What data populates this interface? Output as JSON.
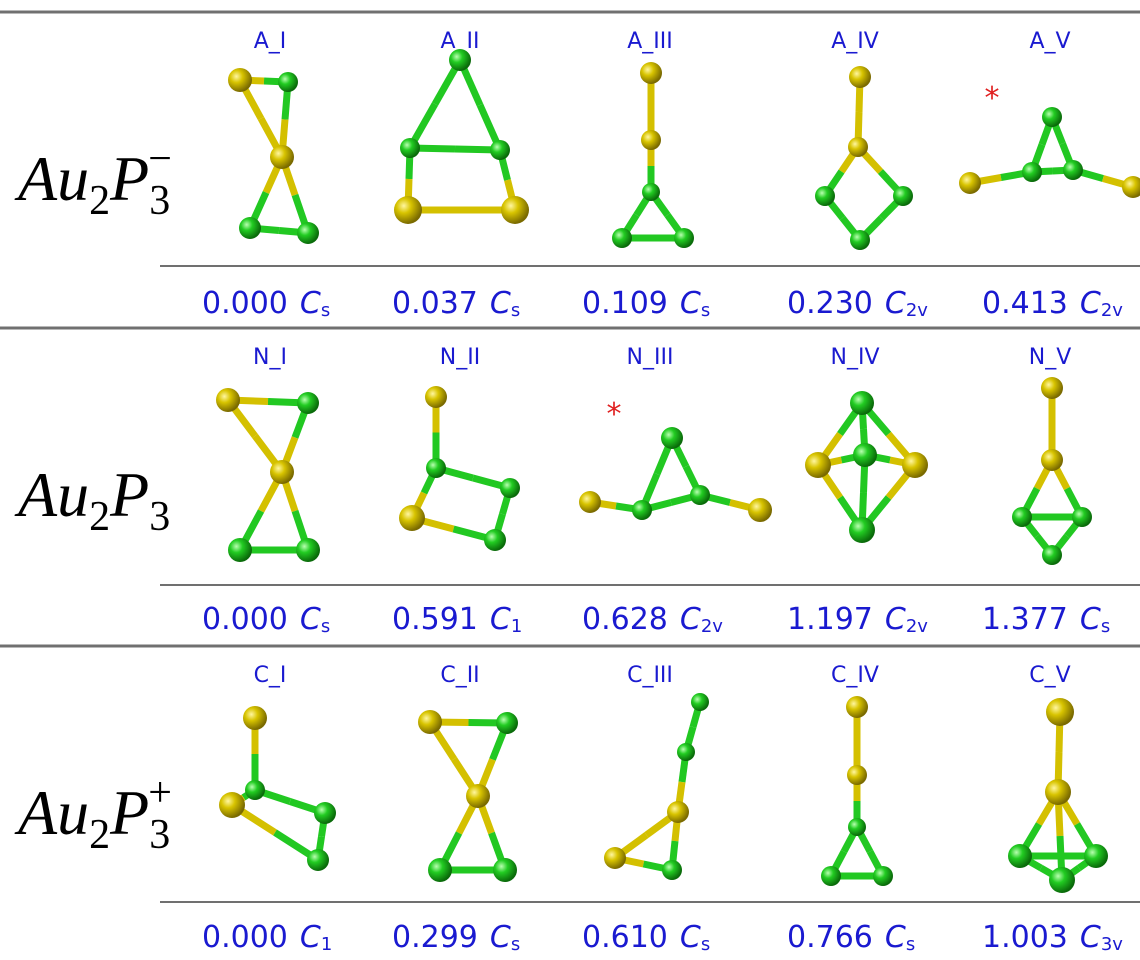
{
  "rows": [
    {
      "formula": {
        "base1": "Au",
        "sub1": "2",
        "base2": "P",
        "sub2": "3",
        "charge": "−"
      },
      "structures": [
        {
          "label": "A_I",
          "energy": "0.000",
          "symmetry": {
            "main": "C",
            "sub": "s"
          }
        },
        {
          "label": "A_II",
          "energy": "0.037",
          "symmetry": {
            "main": "C",
            "sub": "s"
          }
        },
        {
          "label": "A_III",
          "energy": "0.109",
          "symmetry": {
            "main": "C",
            "sub": "s"
          }
        },
        {
          "label": "A_IV",
          "energy": "0.230",
          "symmetry": {
            "main": "C",
            "sub": "2v"
          }
        },
        {
          "label": "A_V",
          "energy": "0.413",
          "symmetry": {
            "main": "C",
            "sub": "2v"
          },
          "note": "*"
        }
      ]
    },
    {
      "formula": {
        "base1": "Au",
        "sub1": "2",
        "base2": "P",
        "sub2": "3"
      },
      "structures": [
        {
          "label": "N_I",
          "energy": "0.000",
          "symmetry": {
            "main": "C",
            "sub": "s"
          }
        },
        {
          "label": "N_II",
          "energy": "0.591",
          "symmetry": {
            "main": "C",
            "sub": "1"
          }
        },
        {
          "label": "N_III",
          "energy": "0.628",
          "symmetry": {
            "main": "C",
            "sub": "2v"
          },
          "note": "*"
        },
        {
          "label": "N_IV",
          "energy": "1.197",
          "symmetry": {
            "main": "C",
            "sub": "2v"
          }
        },
        {
          "label": "N_V",
          "energy": "1.377",
          "symmetry": {
            "main": "C",
            "sub": "s"
          }
        }
      ]
    },
    {
      "formula": {
        "base1": "Au",
        "sub1": "2",
        "base2": "P",
        "sub2": "3",
        "charge": "+"
      },
      "structures": [
        {
          "label": "C_I",
          "energy": "0.000",
          "symmetry": {
            "main": "C",
            "sub": "1"
          }
        },
        {
          "label": "C_II",
          "energy": "0.299",
          "symmetry": {
            "main": "C",
            "sub": "s"
          }
        },
        {
          "label": "C_III",
          "energy": "0.610",
          "symmetry": {
            "main": "C",
            "sub": "s"
          }
        },
        {
          "label": "C_IV",
          "energy": "0.766",
          "symmetry": {
            "main": "C",
            "sub": "s"
          }
        },
        {
          "label": "C_V",
          "energy": "1.003",
          "symmetry": {
            "main": "C",
            "sub": "3v"
          }
        }
      ]
    }
  ]
}
